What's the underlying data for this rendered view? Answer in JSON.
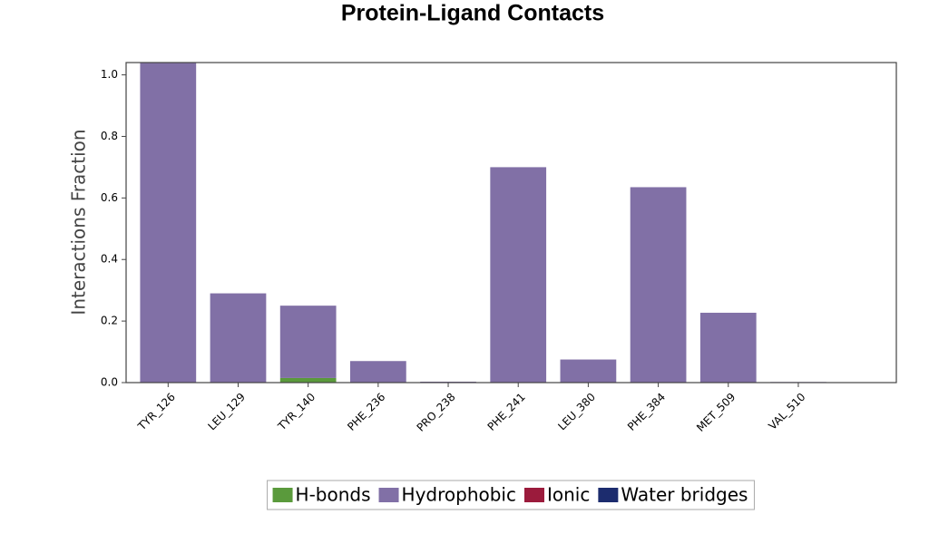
{
  "chart_data": {
    "type": "bar",
    "stacked": true,
    "title": "Protein-Ligand Contacts",
    "y_label": "Interactions Fraction",
    "categories": [
      "TYR_126",
      "LEU_129",
      "TYR_140",
      "PHE_236",
      "PRO_238",
      "PHE_241",
      "LEU_380",
      "PHE_384",
      "MET_509",
      "VAL_510"
    ],
    "series": [
      {
        "name": "H-bonds",
        "color": "#5a9a3c",
        "values": [
          0,
          0,
          0.015,
          0,
          0,
          0,
          0,
          0,
          0,
          0
        ]
      },
      {
        "name": "Hydrophobic",
        "color": "#8170a6",
        "values": [
          1.04,
          0.29,
          0.235,
          0.07,
          0.003,
          0.7,
          0.075,
          0.635,
          0.227,
          0.002
        ]
      },
      {
        "name": "Ionic",
        "color": "#9b1b3c",
        "values": [
          0,
          0,
          0,
          0,
          0,
          0,
          0,
          0,
          0,
          0
        ]
      },
      {
        "name": "Water bridges",
        "color": "#1c2c6e",
        "values": [
          0,
          0,
          0,
          0,
          0,
          0,
          0,
          0,
          0,
          0
        ]
      }
    ],
    "ylim": [
      0,
      1.04
    ],
    "yticks": [
      {
        "value": 0,
        "label": "0.0"
      },
      {
        "value": 0.2,
        "label": "0.2"
      },
      {
        "value": 0.4,
        "label": "0.4"
      },
      {
        "value": 0.6,
        "label": "0.6"
      },
      {
        "value": 0.8,
        "label": "0.8"
      },
      {
        "value": 1,
        "label": "1.0"
      }
    ],
    "legend": "bottom"
  }
}
